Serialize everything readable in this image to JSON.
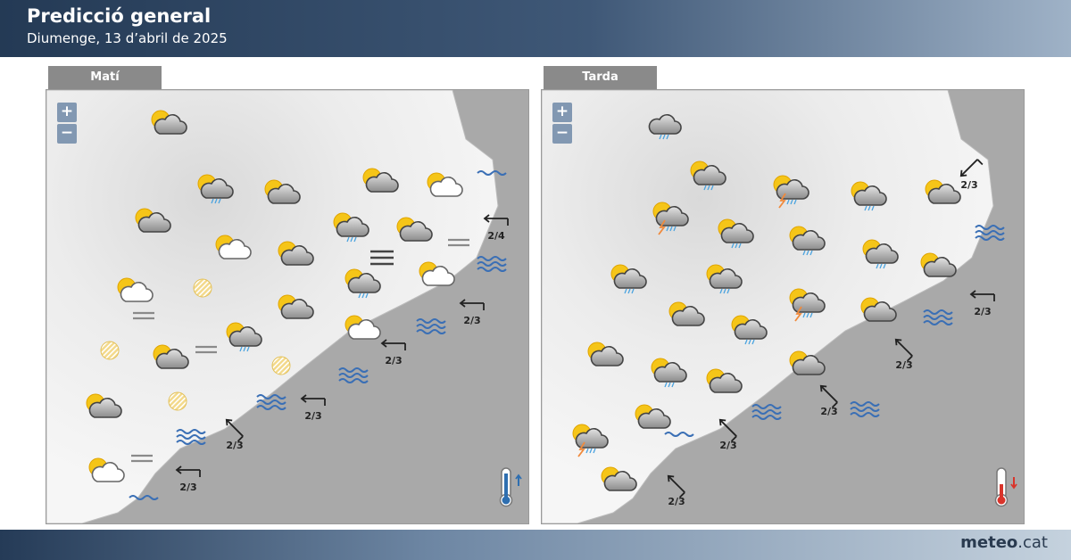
{
  "header": {
    "title": "Predicció general",
    "subtitle": "Diumenge, 13 d’abril de 2025"
  },
  "footer": {
    "brand_bold": "meteo",
    "brand_rest": ".cat"
  },
  "zoom": {
    "plus": "+",
    "minus": "−"
  },
  "colors": {
    "sun": "#f5c518",
    "sea_icon": "#3a6fb5",
    "rain": "#4aa3df",
    "bolt": "#f08a3c",
    "land": "#ececec",
    "sea": "#a9a9a9"
  },
  "maps": [
    {
      "tab": "Matí",
      "thermometer": {
        "color": "#2f6fb0",
        "trend": "up"
      },
      "icons": [
        "sun-cloud",
        "sun-cloud-rain",
        "sun-cloud",
        "sun-cloud",
        "sun-white-cloud",
        "sea-calm",
        "sun-cloud",
        "sun-cloud-rain",
        "sun-cloud",
        "fog-light",
        "sun-white-cloud",
        "sun-cloud",
        "fog-dense",
        "sea-moderate",
        "sun-cloud-rain",
        "sun-white-cloud",
        "sun-white-cloud",
        "haze",
        "fog-light",
        "sun-cloud",
        "sea-moderate",
        "sun-cloud-rain",
        "sun-white-cloud",
        "haze",
        "sun-cloud",
        "fog-light",
        "haze",
        "sea-moderate",
        "haze",
        "sun-cloud",
        "sea-moderate",
        "sea-moderate",
        "fog-light",
        "sun-white-cloud",
        "sea-calm"
      ],
      "winds": [
        {
          "from": "E",
          "label": "2/4"
        },
        {
          "from": "E",
          "label": "2/3"
        },
        {
          "from": "E",
          "label": "2/3"
        },
        {
          "from": "E",
          "label": "2/3"
        },
        {
          "from": "SE",
          "label": "2/3"
        },
        {
          "from": "E",
          "label": "2/3"
        }
      ]
    },
    {
      "tab": "Tarda",
      "thermometer": {
        "color": "#d9342b",
        "trend": "down"
      },
      "icons": [
        "cloud-rain",
        "sun-cloud-rain",
        "sun-cloud-storm",
        "sun-cloud-rain",
        "sun-cloud",
        "sun-cloud-storm",
        "sun-cloud-rain",
        "sun-cloud-rain",
        "sun-cloud-rain",
        "sea-moderate",
        "sun-cloud-rain",
        "sun-cloud-rain",
        "sun-cloud",
        "sun-cloud-storm",
        "sun-cloud",
        "sun-cloud-rain",
        "sun-cloud",
        "sea-moderate",
        "sun-cloud",
        "sun-cloud-rain",
        "sea-moderate",
        "sun-cloud",
        "sun-cloud",
        "sea-moderate",
        "sun-cloud",
        "sea-calm",
        "sun-cloud-storm",
        "sun-cloud"
      ],
      "winds": [
        {
          "from": "NE",
          "label": "2/3"
        },
        {
          "from": "E",
          "label": "2/3"
        },
        {
          "from": "SE",
          "label": "2/3"
        },
        {
          "from": "SE",
          "label": "2/3"
        },
        {
          "from": "SE",
          "label": "2/3"
        },
        {
          "from": "SE",
          "label": "2/3"
        }
      ]
    }
  ]
}
